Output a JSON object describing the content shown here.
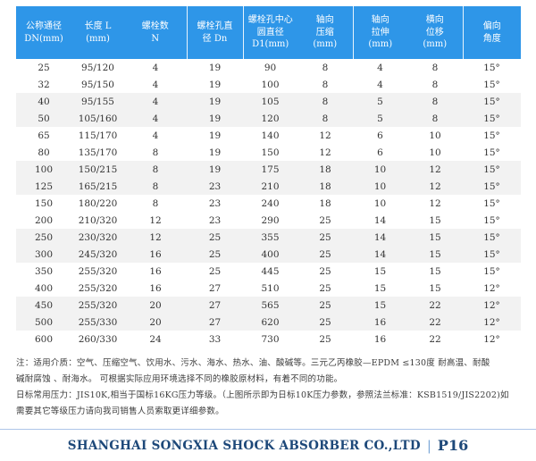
{
  "table": {
    "headers": [
      {
        "name": "nominal-diameter",
        "lines": [
          "公称通径",
          "DN(mm)"
        ]
      },
      {
        "name": "length",
        "lines": [
          "长度 L",
          "(mm)"
        ]
      },
      {
        "name": "bolt-count",
        "lines": [
          "螺栓数",
          "N"
        ]
      },
      {
        "name": "bolt-hole-diameter",
        "lines": [
          "螺栓孔直",
          "径 Dn"
        ]
      },
      {
        "name": "bolt-circle-diameter",
        "lines": [
          "螺栓孔中心",
          "圆直径",
          "D1(mm)"
        ]
      },
      {
        "name": "axial-compression",
        "lines": [
          "轴向",
          "压缩",
          "(mm)"
        ]
      },
      {
        "name": "axial-extension",
        "lines": [
          "轴向",
          "拉伸",
          "(mm)"
        ]
      },
      {
        "name": "lateral-displacement",
        "lines": [
          "横向",
          "位移",
          "(mm)"
        ]
      },
      {
        "name": "deflection-angle",
        "lines": [
          "偏向",
          "角度"
        ]
      }
    ],
    "rows": [
      [
        "25",
        "95/120",
        "4",
        "19",
        "90",
        "8",
        "4",
        "8",
        "15°"
      ],
      [
        "32",
        "95/150",
        "4",
        "19",
        "100",
        "8",
        "4",
        "8",
        "15°"
      ],
      [
        "40",
        "95/155",
        "4",
        "19",
        "105",
        "8",
        "5",
        "8",
        "15°"
      ],
      [
        "50",
        "105/160",
        "4",
        "19",
        "120",
        "8",
        "5",
        "8",
        "15°"
      ],
      [
        "65",
        "115/170",
        "4",
        "19",
        "140",
        "12",
        "6",
        "10",
        "15°"
      ],
      [
        "80",
        "135/170",
        "8",
        "19",
        "150",
        "12",
        "6",
        "10",
        "15°"
      ],
      [
        "100",
        "150/215",
        "8",
        "19",
        "175",
        "18",
        "10",
        "12",
        "15°"
      ],
      [
        "125",
        "165/215",
        "8",
        "23",
        "210",
        "18",
        "10",
        "12",
        "15°"
      ],
      [
        "150",
        "180/220",
        "8",
        "23",
        "240",
        "18",
        "10",
        "12",
        "15°"
      ],
      [
        "200",
        "210/320",
        "12",
        "23",
        "290",
        "25",
        "14",
        "15",
        "15°"
      ],
      [
        "250",
        "230/320",
        "12",
        "25",
        "355",
        "25",
        "14",
        "15",
        "15°"
      ],
      [
        "300",
        "245/320",
        "16",
        "25",
        "400",
        "25",
        "14",
        "15",
        "15°"
      ],
      [
        "350",
        "255/320",
        "16",
        "25",
        "445",
        "25",
        "15",
        "15",
        "15°"
      ],
      [
        "400",
        "255/320",
        "16",
        "27",
        "510",
        "25",
        "15",
        "15",
        "12°"
      ],
      [
        "450",
        "255/320",
        "20",
        "27",
        "565",
        "25",
        "15",
        "22",
        "12°"
      ],
      [
        "500",
        "255/330",
        "20",
        "27",
        "620",
        "25",
        "16",
        "22",
        "12°"
      ],
      [
        "600",
        "260/330",
        "24",
        "33",
        "730",
        "25",
        "16",
        "22",
        "12°"
      ]
    ]
  },
  "notes": {
    "lines": [
      "注：适用介质：空气、压缩空气、饮用水、污水、海水、热水、油、酸碱等。三元乙丙橡胶—EPDM ≤130度 耐高温、耐酸",
      "碱耐腐蚀 、耐海水。 可根据实际应用环境选择不同的橡胶原材料，有着不同的功能。",
      "日标常用压力：JIS10K,相当于国标16KG压力等级。（上图所示即为日标10K压力参数，参照法兰标准：KSB1519/JIS2202)如",
      "需要其它等级压力请向我司销售人员索取更详细参数。"
    ]
  },
  "footer": {
    "company": "SHANGHAI SONGXIA SHOCK ABSORBER CO.,LTD",
    "separator": "|",
    "page": "P16"
  },
  "colors": {
    "header_bg": "#2E96E8",
    "header_text": "#FFFFFF",
    "stripe": "#F2F2F2",
    "body_text": "#333333",
    "note_text": "#3C3C3C",
    "footer_text": "#1D4879",
    "footer_rule": "#AEC6E8"
  }
}
